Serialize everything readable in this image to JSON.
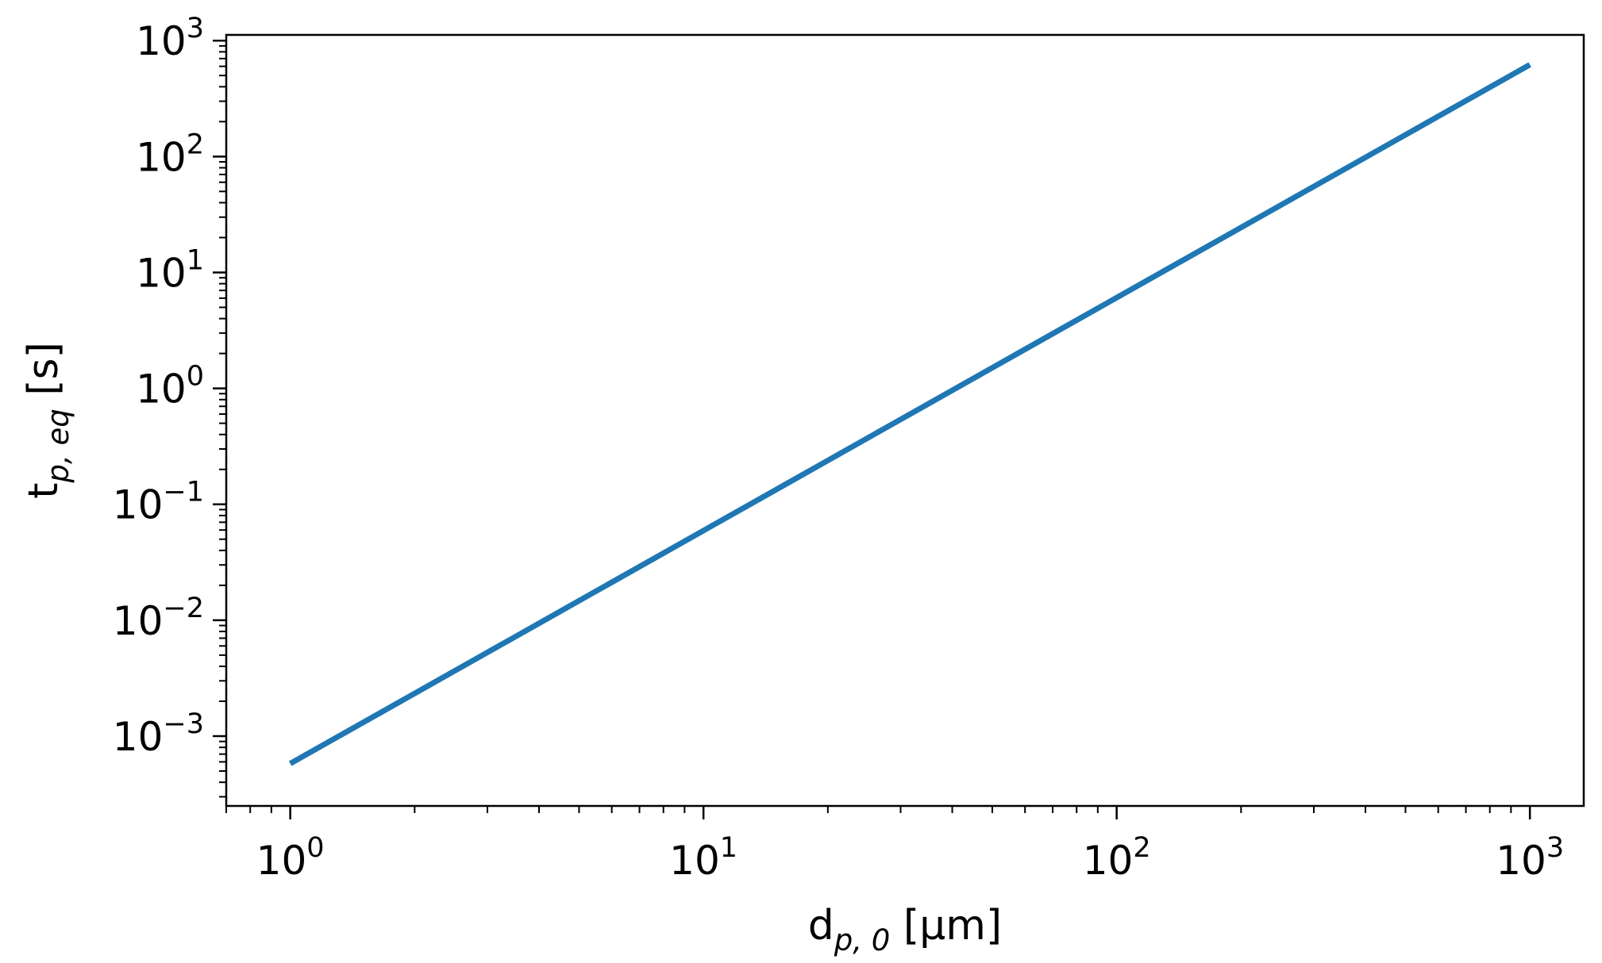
{
  "chart_data": {
    "type": "line",
    "x_scale": "log",
    "y_scale": "log",
    "xlim": [
      0.7,
      1350.0
    ],
    "ylim": [
      0.00025,
      1120.0
    ],
    "xlabel": {
      "base": "d",
      "sub": "p, 0",
      "unit": " [μm]"
    },
    "ylabel": {
      "base": "t",
      "sub": "p, eq",
      "unit": " [s]"
    },
    "x_ticks": [
      {
        "value": 1,
        "base": "10",
        "exp": "0"
      },
      {
        "value": 10,
        "base": "10",
        "exp": "1"
      },
      {
        "value": 100,
        "base": "10",
        "exp": "2"
      },
      {
        "value": 1000,
        "base": "10",
        "exp": "3"
      }
    ],
    "y_ticks": [
      {
        "value": 0.001,
        "base": "10",
        "exp": "−3"
      },
      {
        "value": 0.01,
        "base": "10",
        "exp": "−2"
      },
      {
        "value": 0.1,
        "base": "10",
        "exp": "−1"
      },
      {
        "value": 1,
        "base": "10",
        "exp": "0"
      },
      {
        "value": 10,
        "base": "10",
        "exp": "1"
      },
      {
        "value": 100,
        "base": "10",
        "exp": "2"
      },
      {
        "value": 1000,
        "base": "10",
        "exp": "3"
      }
    ],
    "grid": false,
    "series": [
      {
        "color": "#1f77b4",
        "x": [
          1,
          1000
        ],
        "y": [
          0.00058,
          620
        ]
      }
    ]
  }
}
